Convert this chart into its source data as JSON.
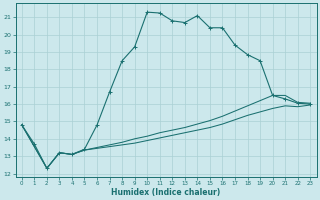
{
  "xlabel": "Humidex (Indice chaleur)",
  "bg_color": "#cce8ec",
  "grid_color": "#aad0d5",
  "line_color": "#1a7070",
  "xlim": [
    -0.5,
    23.5
  ],
  "ylim": [
    11.8,
    21.8
  ],
  "yticks": [
    12,
    13,
    14,
    15,
    16,
    17,
    18,
    19,
    20,
    21
  ],
  "xticks": [
    0,
    1,
    2,
    3,
    4,
    5,
    6,
    7,
    8,
    9,
    10,
    11,
    12,
    13,
    14,
    15,
    16,
    17,
    18,
    19,
    20,
    21,
    22,
    23
  ],
  "line1_x": [
    0,
    1,
    2,
    3,
    4,
    5,
    6,
    7,
    8,
    9,
    10,
    11,
    12,
    13,
    14,
    15,
    16,
    17,
    18,
    19,
    20,
    21,
    22,
    23
  ],
  "line1_y": [
    14.8,
    13.7,
    12.3,
    13.2,
    13.1,
    13.4,
    14.8,
    16.7,
    18.5,
    19.3,
    21.3,
    21.25,
    20.8,
    20.7,
    21.1,
    20.4,
    20.4,
    19.4,
    18.85,
    18.5,
    16.5,
    16.3,
    16.05,
    16.0
  ],
  "line2_x": [
    0,
    2,
    3,
    4,
    5,
    6,
    7,
    8,
    9,
    10,
    11,
    12,
    13,
    14,
    15,
    16,
    17,
    18,
    19,
    20,
    21,
    22,
    23
  ],
  "line2_y": [
    14.8,
    12.3,
    13.2,
    13.1,
    13.35,
    13.5,
    13.65,
    13.8,
    14.0,
    14.15,
    14.35,
    14.5,
    14.65,
    14.85,
    15.05,
    15.3,
    15.6,
    15.9,
    16.2,
    16.5,
    16.5,
    16.1,
    16.05
  ],
  "line3_x": [
    0,
    2,
    3,
    4,
    5,
    6,
    7,
    8,
    9,
    10,
    11,
    12,
    13,
    14,
    15,
    16,
    17,
    18,
    19,
    20,
    21,
    22,
    23
  ],
  "line3_y": [
    14.8,
    12.3,
    13.2,
    13.1,
    13.35,
    13.45,
    13.55,
    13.65,
    13.75,
    13.9,
    14.05,
    14.2,
    14.35,
    14.5,
    14.65,
    14.85,
    15.1,
    15.35,
    15.55,
    15.75,
    15.9,
    15.85,
    15.95
  ]
}
